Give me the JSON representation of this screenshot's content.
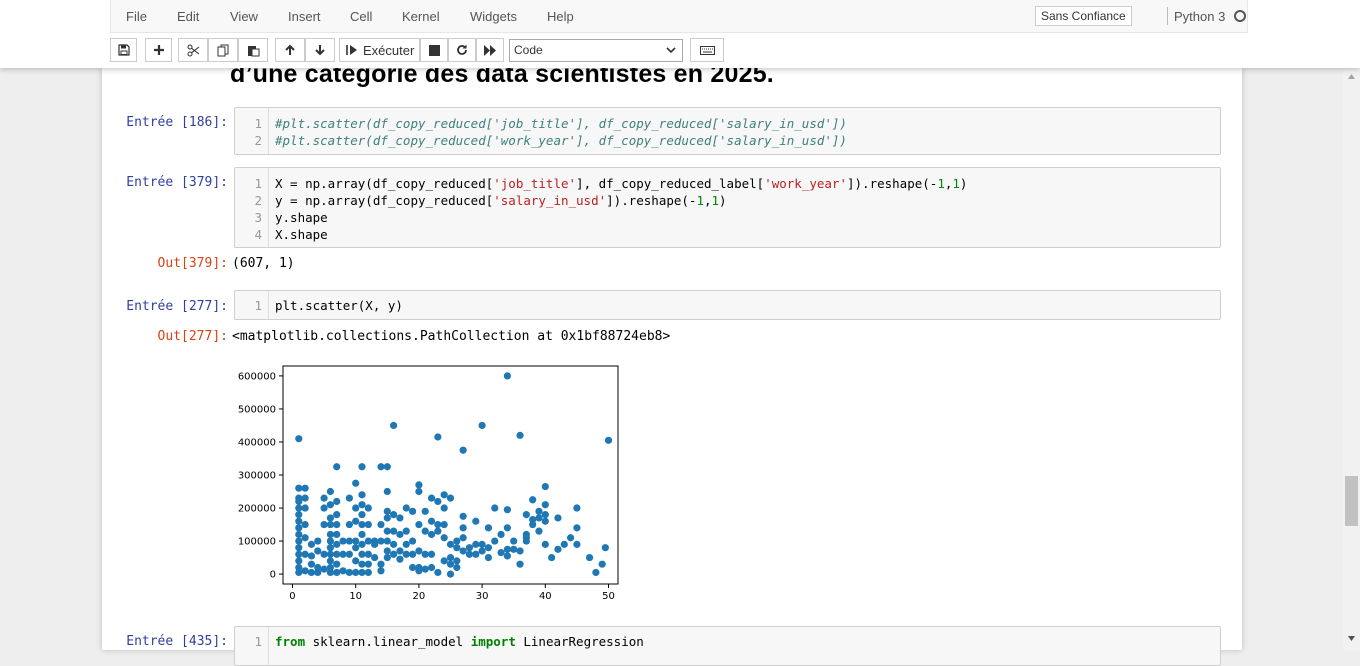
{
  "menu": {
    "items": [
      "File",
      "Edit",
      "View",
      "Insert",
      "Cell",
      "Kernel",
      "Widgets",
      "Help"
    ],
    "trust_label": "Sans Confiance",
    "kernel_name": "Python 3"
  },
  "toolbar": {
    "run_label": "Exécuter",
    "cell_type_value": "Code",
    "icons": [
      "save-icon",
      "plus-icon",
      "cut-icon",
      "copy-icon",
      "paste-icon",
      "arrow-up-icon",
      "arrow-down-icon",
      "run-icon",
      "stop-icon",
      "restart-icon",
      "fast-forward-icon",
      "keyboard-icon"
    ]
  },
  "notebook": {
    "heading": "d’une categorie des data scientistes en 2025.",
    "cells": [
      {
        "in_prompt": "Entrée [186]:",
        "line_numbers": [
          "1",
          "2"
        ],
        "code_lines": [
          "#plt.scatter(df_copy_reduced['job_title'], df_copy_reduced['salary_in_usd'])",
          "#plt.scatter(df_copy_reduced['work_year'], df_copy_reduced['salary_in_usd'])"
        ]
      },
      {
        "in_prompt": "Entrée [379]:",
        "line_numbers": [
          "1",
          "2",
          "3",
          "4"
        ],
        "code_lines": [
          "X = np.array(df_copy_reduced['job_title'], df_copy_reduced_label['work_year']).reshape(-1,1)",
          "y = np.array(df_copy_reduced['salary_in_usd']).reshape(-1,1)",
          "y.shape",
          "X.shape"
        ],
        "out_prompt": "Out[379]:",
        "output": "(607, 1)"
      },
      {
        "in_prompt": "Entrée [277]:",
        "line_numbers": [
          "1"
        ],
        "code_lines": [
          "plt.scatter(X, y)"
        ],
        "out_prompt": "Out[277]:",
        "output": "<matplotlib.collections.PathCollection at 0x1bf88724eb8>"
      },
      {
        "in_prompt": "Entrée [435]:",
        "line_numbers": [
          "1"
        ],
        "code_lines": [
          "from sklearn.linear_model import LinearRegression"
        ]
      }
    ]
  },
  "chart_data": {
    "type": "scatter",
    "title": "",
    "xlabel": "",
    "ylabel": "",
    "xlim": [
      -1.5,
      51.5
    ],
    "ylim": [
      -30000,
      630000
    ],
    "xticks": [
      0,
      10,
      20,
      30,
      40,
      50
    ],
    "xtick_labels": [
      "0",
      "10",
      "20",
      "30",
      "40",
      "50"
    ],
    "yticks": [
      0,
      100000,
      200000,
      300000,
      400000,
      500000,
      600000
    ],
    "ytick_labels": [
      "0",
      "100000",
      "200000",
      "300000",
      "400000",
      "500000",
      "600000"
    ],
    "grid": false,
    "color": "#1f77b4",
    "points": [
      [
        1,
        410000
      ],
      [
        1,
        260000
      ],
      [
        1,
        230000
      ],
      [
        1,
        220000
      ],
      [
        1,
        200000
      ],
      [
        1,
        180000
      ],
      [
        1,
        160000
      ],
      [
        1,
        140000
      ],
      [
        1,
        120000
      ],
      [
        1,
        100000
      ],
      [
        1,
        80000
      ],
      [
        1,
        60000
      ],
      [
        1,
        40000
      ],
      [
        1,
        20000
      ],
      [
        1,
        5000
      ],
      [
        2,
        260000
      ],
      [
        2,
        230000
      ],
      [
        2,
        200000
      ],
      [
        2,
        150000
      ],
      [
        2,
        110000
      ],
      [
        2,
        60000
      ],
      [
        2,
        10000
      ],
      [
        3,
        90000
      ],
      [
        3,
        55000
      ],
      [
        3,
        30000
      ],
      [
        3,
        5000
      ],
      [
        4,
        100000
      ],
      [
        4,
        70000
      ],
      [
        4,
        20000
      ],
      [
        4,
        5000
      ],
      [
        5,
        230000
      ],
      [
        5,
        200000
      ],
      [
        5,
        150000
      ],
      [
        5,
        60000
      ],
      [
        5,
        15000
      ],
      [
        6,
        250000
      ],
      [
        6,
        210000
      ],
      [
        6,
        170000
      ],
      [
        6,
        150000
      ],
      [
        6,
        120000
      ],
      [
        6,
        100000
      ],
      [
        6,
        80000
      ],
      [
        6,
        60000
      ],
      [
        6,
        40000
      ],
      [
        6,
        20000
      ],
      [
        6,
        5000
      ],
      [
        7,
        325000
      ],
      [
        7,
        220000
      ],
      [
        7,
        180000
      ],
      [
        7,
        150000
      ],
      [
        7,
        120000
      ],
      [
        7,
        90000
      ],
      [
        7,
        60000
      ],
      [
        7,
        30000
      ],
      [
        7,
        5000
      ],
      [
        8,
        100000
      ],
      [
        8,
        60000
      ],
      [
        8,
        10000
      ],
      [
        9,
        230000
      ],
      [
        9,
        150000
      ],
      [
        9,
        100000
      ],
      [
        9,
        60000
      ],
      [
        9,
        5000
      ],
      [
        10,
        275000
      ],
      [
        10,
        200000
      ],
      [
        10,
        160000
      ],
      [
        10,
        100000
      ],
      [
        10,
        80000
      ],
      [
        10,
        40000
      ],
      [
        10,
        5000
      ],
      [
        11,
        325000
      ],
      [
        11,
        240000
      ],
      [
        11,
        210000
      ],
      [
        11,
        180000
      ],
      [
        11,
        150000
      ],
      [
        11,
        120000
      ],
      [
        11,
        90000
      ],
      [
        11,
        60000
      ],
      [
        11,
        30000
      ],
      [
        11,
        5000
      ],
      [
        12,
        200000
      ],
      [
        12,
        150000
      ],
      [
        12,
        100000
      ],
      [
        12,
        60000
      ],
      [
        12,
        30000
      ],
      [
        12,
        5000
      ],
      [
        13,
        100000
      ],
      [
        13,
        90000
      ],
      [
        13,
        50000
      ],
      [
        14,
        325000
      ],
      [
        14,
        150000
      ],
      [
        14,
        100000
      ],
      [
        14,
        30000
      ],
      [
        14,
        10000
      ],
      [
        15,
        325000
      ],
      [
        15,
        250000
      ],
      [
        15,
        190000
      ],
      [
        15,
        170000
      ],
      [
        15,
        130000
      ],
      [
        15,
        100000
      ],
      [
        15,
        70000
      ],
      [
        15,
        50000
      ],
      [
        16,
        450000
      ],
      [
        16,
        180000
      ],
      [
        16,
        130000
      ],
      [
        16,
        90000
      ],
      [
        16,
        60000
      ],
      [
        17,
        170000
      ],
      [
        17,
        120000
      ],
      [
        17,
        70000
      ],
      [
        17,
        45000
      ],
      [
        18,
        200000
      ],
      [
        18,
        130000
      ],
      [
        18,
        90000
      ],
      [
        18,
        60000
      ],
      [
        19,
        190000
      ],
      [
        19,
        100000
      ],
      [
        19,
        60000
      ],
      [
        19,
        20000
      ],
      [
        20,
        270000
      ],
      [
        20,
        250000
      ],
      [
        20,
        150000
      ],
      [
        20,
        70000
      ],
      [
        20,
        20000
      ],
      [
        20,
        10000
      ],
      [
        21,
        190000
      ],
      [
        21,
        130000
      ],
      [
        21,
        60000
      ],
      [
        21,
        15000
      ],
      [
        22,
        230000
      ],
      [
        22,
        160000
      ],
      [
        22,
        120000
      ],
      [
        22,
        60000
      ],
      [
        22,
        20000
      ],
      [
        23,
        415000
      ],
      [
        23,
        220000
      ],
      [
        23,
        150000
      ],
      [
        23,
        130000
      ],
      [
        23,
        5000
      ],
      [
        24,
        240000
      ],
      [
        24,
        200000
      ],
      [
        24,
        150000
      ],
      [
        24,
        110000
      ],
      [
        24,
        40000
      ],
      [
        25,
        230000
      ],
      [
        25,
        90000
      ],
      [
        25,
        50000
      ],
      [
        25,
        30000
      ],
      [
        25,
        0
      ],
      [
        26,
        100000
      ],
      [
        26,
        80000
      ],
      [
        26,
        40000
      ],
      [
        26,
        20000
      ],
      [
        27,
        375000
      ],
      [
        27,
        175000
      ],
      [
        27,
        140000
      ],
      [
        27,
        110000
      ],
      [
        27,
        70000
      ],
      [
        28,
        80000
      ],
      [
        28,
        60000
      ],
      [
        29,
        160000
      ],
      [
        29,
        90000
      ],
      [
        29,
        60000
      ],
      [
        30,
        450000
      ],
      [
        30,
        90000
      ],
      [
        30,
        70000
      ],
      [
        31,
        140000
      ],
      [
        31,
        80000
      ],
      [
        31,
        50000
      ],
      [
        32,
        200000
      ],
      [
        32,
        100000
      ],
      [
        33,
        120000
      ],
      [
        33,
        65000
      ],
      [
        34,
        600000
      ],
      [
        34,
        195000
      ],
      [
        34,
        140000
      ],
      [
        34,
        75000
      ],
      [
        34,
        55000
      ],
      [
        35,
        100000
      ],
      [
        35,
        75000
      ],
      [
        36,
        420000
      ],
      [
        36,
        30000
      ],
      [
        36,
        70000
      ],
      [
        37,
        180000
      ],
      [
        37,
        120000
      ],
      [
        37,
        110000
      ],
      [
        37,
        100000
      ],
      [
        38,
        225000
      ],
      [
        38,
        150000
      ],
      [
        38,
        165000
      ],
      [
        39,
        170000
      ],
      [
        39,
        130000
      ],
      [
        39,
        190000
      ],
      [
        40,
        265000
      ],
      [
        40,
        210000
      ],
      [
        40,
        180000
      ],
      [
        40,
        160000
      ],
      [
        40,
        90000
      ],
      [
        41,
        50000
      ],
      [
        42,
        170000
      ],
      [
        42,
        75000
      ],
      [
        43,
        90000
      ],
      [
        44,
        110000
      ],
      [
        45,
        200000
      ],
      [
        45,
        140000
      ],
      [
        45,
        90000
      ],
      [
        47,
        50000
      ],
      [
        48,
        5000
      ],
      [
        49,
        30000
      ],
      [
        50,
        405000
      ],
      [
        49.5,
        80000
      ]
    ]
  }
}
